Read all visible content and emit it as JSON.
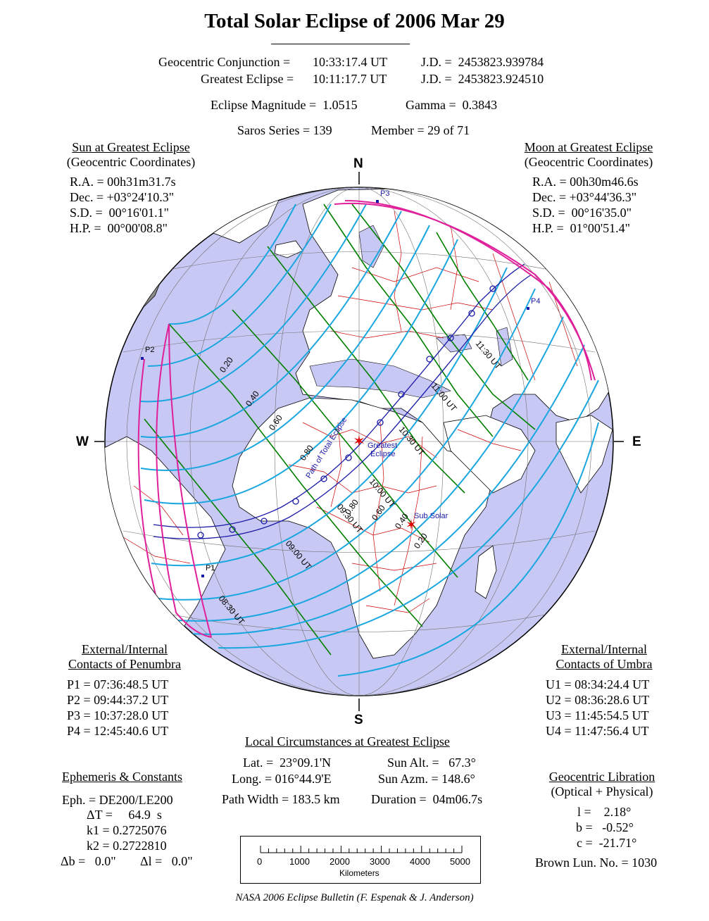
{
  "title": "Total Solar Eclipse of  2006 Mar 29",
  "header": {
    "conj_label": "Geocentric Conjunction =",
    "conj_time": "10:33:17.4 UT",
    "conj_jd": "J.D. =  2453823.939784",
    "ge_label": "Greatest Eclipse =",
    "ge_time": "10:11:17.7 UT",
    "ge_jd": "J.D. =  2453823.924510",
    "magnitude": "Eclipse Magnitude =  1.0515",
    "gamma": "Gamma =  0.3843",
    "saros": "Saros Series = 139",
    "member": "Member = 29 of 71"
  },
  "sun": {
    "heading": "Sun at Greatest Eclipse",
    "sub": "(Geocentric Coordinates)",
    "lines": [
      "R.A. = 00h31m31.7s",
      "Dec. = +03°24'10.3\"",
      "S.D. =  00°16'01.1\"",
      "H.P. =  00°00'08.8\""
    ]
  },
  "moon": {
    "heading": "Moon at Greatest Eclipse",
    "sub": "(Geocentric Coordinates)",
    "lines": [
      "R.A. = 00h30m46.6s",
      "Dec. = +03°44'36.3\"",
      "S.D. =  00°16'35.0\"",
      "H.P. =  01°00'51.4\""
    ]
  },
  "penumbra": {
    "heading1": "External/Internal",
    "heading2": "Contacts of Penumbra",
    "lines": [
      "P1 = 07:36:48.5 UT",
      "P2 = 09:44:37.2 UT",
      "P3 = 10:37:28.0 UT",
      "P4 = 12:45:40.6 UT"
    ]
  },
  "umbra": {
    "heading1": "External/Internal",
    "heading2": "Contacts of Umbra",
    "lines": [
      "U1 = 08:34:24.4 UT",
      "U2 = 08:36:28.6 UT",
      "U3 = 11:45:54.5 UT",
      "U4 = 11:47:56.4 UT"
    ]
  },
  "local": {
    "heading": "Local Circumstances at Greatest Eclipse",
    "lat": "Lat. =  23°09.1'N",
    "long": "Long. = 016°44.9'E",
    "width": "Path Width = 183.5 km",
    "alt": "Sun Alt. =   67.3°",
    "azm": "Sun Azm. = 148.6°",
    "duration": "Duration =  04m06.7s"
  },
  "ephemeris": {
    "heading": "Ephemeris & Constants",
    "eph": "Eph. = DE200/LE200",
    "dt": "ΔT =     64.9  s",
    "k1": "k1 = 0.2725076",
    "k2": "k2 = 0.2722810",
    "db": "Δb =   0.0\"",
    "dl": "Δl =   0.0\""
  },
  "libration": {
    "heading": "Geocentric Libration",
    "sub": "(Optical + Physical)",
    "l": "l =    2.18°",
    "b": "b =   -0.52°",
    "c": "c =  -21.71°",
    "brown": "Brown Lun. No. = 1030"
  },
  "compass": {
    "n": "N",
    "s": "S",
    "e": "E",
    "w": "W"
  },
  "map_labels": {
    "p1": "P1",
    "p2": "P2",
    "p3": "P3",
    "p4": "P4",
    "greatest1": "Greatest",
    "greatest2": "Eclipse",
    "subsolar": "Sub Solar",
    "path": "Path of Total Eclipse",
    "t0830": "08:30 UT",
    "t0900": "09:00 UT",
    "t0930": "09:30 UT",
    "t1000": "10:00 UT",
    "t1030": "10:30 UT",
    "t1100": "11:00 UT",
    "t1130": "11:30 UT",
    "m020a": "0.20",
    "m040a": "0.40",
    "m060a": "0.60",
    "m080a": "0.80",
    "m080b": "0.80",
    "m060b": "0.60",
    "m040b": "0.40",
    "m020b": "0.20"
  },
  "scale": {
    "ticks": [
      "0",
      "1000",
      "2000",
      "3000",
      "4000",
      "5000"
    ],
    "unit": "Kilometers"
  },
  "credit": "NASA 2006 Eclipse Bulletin (F. Espenak & J. Anderson)",
  "colors": {
    "ocean": "#c8c8f4",
    "land": "#ffffff",
    "night": "#8c8c8c",
    "penumbra_limit": "#e0209a",
    "magnitude": "#1aa7e0",
    "time": "#008000",
    "path": "#1a1aa8",
    "borders": "#cc0000",
    "marker": "#e00000"
  }
}
